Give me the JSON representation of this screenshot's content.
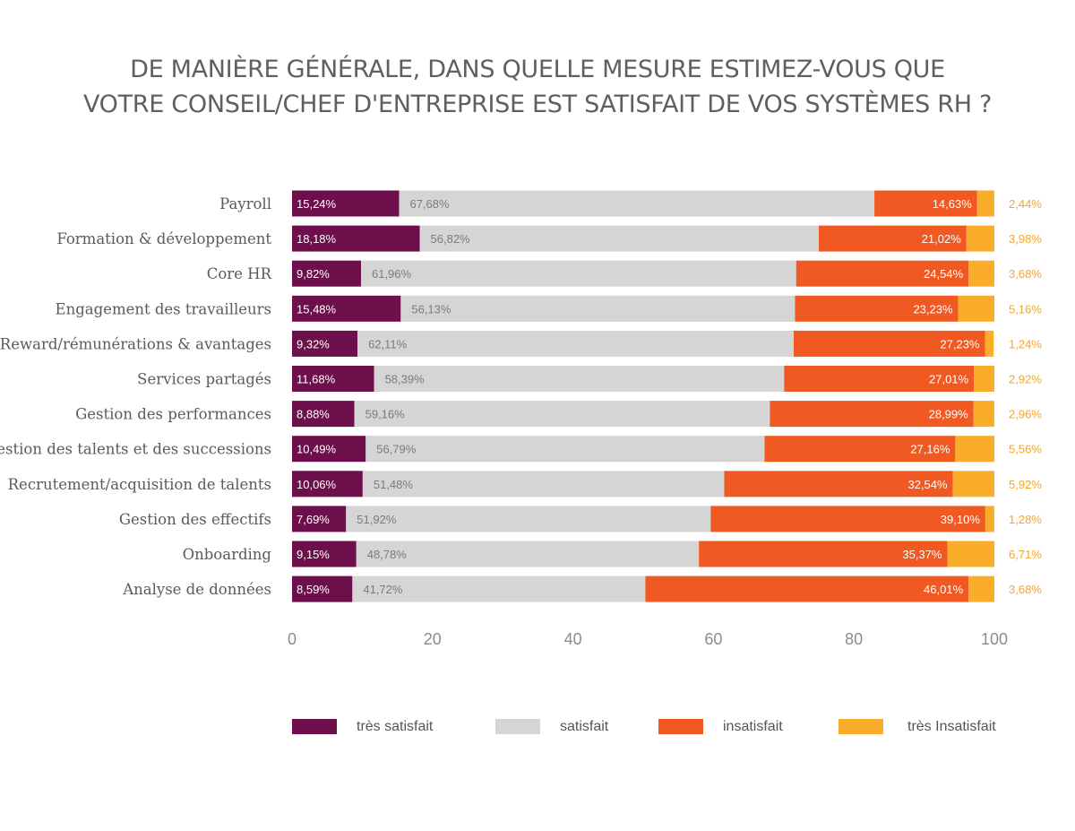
{
  "chart_data": {
    "type": "bar",
    "orientation": "horizontal",
    "stacked": true,
    "title": "DE MANIÈRE GÉNÉRALE, DANS QUELLE MESURE ESTIMEZ-VOUS QUE VOTRE CONSEIL/CHEF D'ENTREPRISE EST SATISFAIT DE VOS SYSTÈMES RH ?",
    "title_lines": [
      "DE MANIÈRE GÉNÉRALE, DANS QUELLE MESURE ESTIMEZ-VOUS QUE",
      "VOTRE CONSEIL/CHEF D'ENTREPRISE EST SATISFAIT DE VOS SYSTÈMES RH ?"
    ],
    "categories": [
      "Payroll",
      "Formation & développement",
      "Core HR",
      "Engagement des travailleurs",
      "Reward/rémunérations & avantages",
      "Services partagés",
      "Gestion des performances",
      "Gestion des talents et des successions",
      "Recrutement/acquisition de talents",
      "Gestion des effectifs",
      "Onboarding",
      "Analyse de données"
    ],
    "series": [
      {
        "name": "très satisfait",
        "color": "#6d0f4a",
        "values": [
          15.24,
          18.18,
          9.82,
          15.48,
          9.32,
          11.68,
          8.88,
          10.49,
          10.06,
          7.69,
          9.15,
          8.59
        ],
        "labels": [
          "15,24%",
          "18,18%",
          "9,82%",
          "15,48%",
          "9,32%",
          "11,68%",
          "8,88%",
          "10,49%",
          "10,06%",
          "7,69%",
          "9,15%",
          "8,59%"
        ]
      },
      {
        "name": "satisfait",
        "color": "#d6d5d6",
        "values": [
          67.68,
          56.82,
          61.96,
          56.13,
          62.11,
          58.39,
          59.16,
          56.79,
          51.48,
          51.92,
          48.78,
          41.72
        ],
        "labels": [
          "67,68%",
          "56,82%",
          "61,96%",
          "56,13%",
          "62,11%",
          "58,39%",
          "59,16%",
          "56,79%",
          "51,48%",
          "51,92%",
          "48,78%",
          "41,72%"
        ]
      },
      {
        "name": "insatisfait",
        "color": "#f05a22",
        "values": [
          14.63,
          21.02,
          24.54,
          23.23,
          27.23,
          27.01,
          28.99,
          27.16,
          32.54,
          39.1,
          35.37,
          46.01
        ],
        "labels": [
          "14,63%",
          "21,02%",
          "24,54%",
          "23,23%",
          "27,23%",
          "27,01%",
          "28,99%",
          "27,16%",
          "32,54%",
          "39,10%",
          "35,37%",
          "46,01%"
        ]
      },
      {
        "name": "très Insatisfait",
        "color": "#f9ad2a",
        "values": [
          2.44,
          3.98,
          3.68,
          5.16,
          1.24,
          2.92,
          2.96,
          5.56,
          5.92,
          1.28,
          6.71,
          3.68
        ],
        "labels": [
          "2,44%",
          "3,98%",
          "3,68%",
          "5,16%",
          "1,24%",
          "2,92%",
          "2,96%",
          "5,56%",
          "5,92%",
          "1,28%",
          "6,71%",
          "3,68%"
        ]
      }
    ],
    "xlim": [
      0,
      100
    ],
    "xticks": [
      0,
      20,
      40,
      60,
      80,
      100
    ],
    "xtick_labels": [
      "0",
      "20",
      "40",
      "60",
      "80",
      "100"
    ],
    "grid": false,
    "legend_position": "bottom"
  }
}
